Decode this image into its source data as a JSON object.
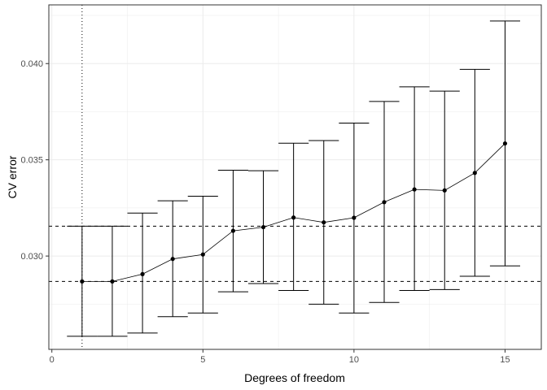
{
  "chart_data": {
    "type": "line",
    "title": "",
    "xlabel": "Degrees of freedom",
    "ylabel": "CV error",
    "xlim": [
      -0.1,
      16.2
    ],
    "ylim": [
      0.02515,
      0.04305
    ],
    "x_ticks": [
      0,
      5,
      10,
      15
    ],
    "x_tick_labels": [
      "0",
      "5",
      "10",
      "15"
    ],
    "y_ticks": [
      0.03,
      0.035,
      0.04
    ],
    "y_tick_labels": [
      "0.030",
      "0.035",
      "0.040"
    ],
    "grid": true,
    "legend": "none",
    "series": [
      {
        "x": [
          1,
          2,
          3,
          4,
          5,
          6,
          7,
          8,
          9,
          10,
          11,
          12,
          13,
          14,
          15
        ],
        "values": [
          0.02868,
          0.02868,
          0.02906,
          0.02985,
          0.03008,
          0.03131,
          0.0315,
          0.032,
          0.03175,
          0.03199,
          0.0328,
          0.03346,
          0.03341,
          0.03432,
          0.03585
        ],
        "lower": [
          0.02583,
          0.02583,
          0.026,
          0.02685,
          0.02704,
          0.02814,
          0.02857,
          0.02821,
          0.0275,
          0.02704,
          0.02759,
          0.02821,
          0.02826,
          0.02895,
          0.02949
        ],
        "upper": [
          0.03155,
          0.03155,
          0.03223,
          0.03287,
          0.03311,
          0.03446,
          0.03443,
          0.03586,
          0.036,
          0.03691,
          0.03803,
          0.03879,
          0.03857,
          0.0397,
          0.04221
        ]
      }
    ],
    "reference_lines": {
      "vertical_x": 1,
      "horizontal_y": [
        0.03155,
        0.02868
      ]
    },
    "colors": {
      "line": "#000000",
      "grid": "#ebebeb",
      "panel_border": "#333333"
    }
  }
}
